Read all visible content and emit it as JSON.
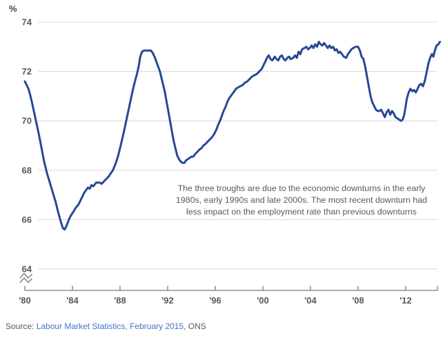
{
  "page": {
    "background": "#ffffff"
  },
  "chart_data": {
    "type": "line",
    "title": "",
    "ylabel": "%",
    "xlabel": "",
    "ylim": [
      64,
      74
    ],
    "yticks": [
      64,
      66,
      68,
      70,
      72,
      74
    ],
    "xticks": [
      {
        "year": 1980,
        "label": "'80"
      },
      {
        "year": 1984,
        "label": "'84"
      },
      {
        "year": 1988,
        "label": "'88"
      },
      {
        "year": 1992,
        "label": "'92"
      },
      {
        "year": 1996,
        "label": "'96"
      },
      {
        "year": 2000,
        "label": "'00"
      },
      {
        "year": 2004,
        "label": "'04"
      },
      {
        "year": 2008,
        "label": "'08"
      },
      {
        "year": 2012,
        "label": "'12"
      }
    ],
    "x_start_year": 1980,
    "x_end_year": 2014.67,
    "axis_break": true,
    "grid": true,
    "legend": "none",
    "colors": {
      "line": "#274796",
      "grid": "#d9d9d9",
      "axis": "#7a7a7a",
      "tick_label": "#595959"
    },
    "series": [
      {
        "name": "employment-rate",
        "points": [
          [
            1980,
            71.6
          ],
          [
            1980.15,
            71.45
          ],
          [
            1980.3,
            71.3
          ],
          [
            1980.45,
            71.05
          ],
          [
            1980.6,
            70.75
          ],
          [
            1980.8,
            70.3
          ],
          [
            1981,
            69.85
          ],
          [
            1981.2,
            69.4
          ],
          [
            1981.4,
            68.9
          ],
          [
            1981.6,
            68.4
          ],
          [
            1981.85,
            67.9
          ],
          [
            1982.1,
            67.5
          ],
          [
            1982.35,
            67.1
          ],
          [
            1982.6,
            66.7
          ],
          [
            1982.8,
            66.3
          ],
          [
            1983,
            65.95
          ],
          [
            1983.2,
            65.65
          ],
          [
            1983.35,
            65.6
          ],
          [
            1983.5,
            65.75
          ],
          [
            1983.7,
            66.0
          ],
          [
            1983.85,
            66.15
          ],
          [
            1984.05,
            66.3
          ],
          [
            1984.3,
            66.5
          ],
          [
            1984.5,
            66.6
          ],
          [
            1984.8,
            66.9
          ],
          [
            1985,
            67.1
          ],
          [
            1985.3,
            67.3
          ],
          [
            1985.45,
            67.25
          ],
          [
            1985.6,
            67.4
          ],
          [
            1985.75,
            67.35
          ],
          [
            1986,
            67.5
          ],
          [
            1986.3,
            67.5
          ],
          [
            1986.45,
            67.45
          ],
          [
            1986.65,
            67.55
          ],
          [
            1986.85,
            67.65
          ],
          [
            1987.05,
            67.75
          ],
          [
            1987.25,
            67.9
          ],
          [
            1987.4,
            68.0
          ],
          [
            1987.65,
            68.3
          ],
          [
            1987.85,
            68.6
          ],
          [
            1988.05,
            69.0
          ],
          [
            1988.25,
            69.4
          ],
          [
            1988.45,
            69.85
          ],
          [
            1988.65,
            70.3
          ],
          [
            1988.85,
            70.75
          ],
          [
            1989.05,
            71.2
          ],
          [
            1989.25,
            71.6
          ],
          [
            1989.45,
            71.95
          ],
          [
            1989.6,
            72.3
          ],
          [
            1989.7,
            72.6
          ],
          [
            1989.85,
            72.8
          ],
          [
            1990,
            72.85
          ],
          [
            1990.2,
            72.85
          ],
          [
            1990.4,
            72.85
          ],
          [
            1990.6,
            72.85
          ],
          [
            1990.75,
            72.75
          ],
          [
            1990.9,
            72.6
          ],
          [
            1991.05,
            72.4
          ],
          [
            1991.2,
            72.2
          ],
          [
            1991.35,
            72.0
          ],
          [
            1991.55,
            71.6
          ],
          [
            1991.75,
            71.2
          ],
          [
            1991.9,
            70.8
          ],
          [
            1992.05,
            70.4
          ],
          [
            1992.2,
            70.0
          ],
          [
            1992.35,
            69.6
          ],
          [
            1992.5,
            69.2
          ],
          [
            1992.65,
            68.9
          ],
          [
            1992.8,
            68.6
          ],
          [
            1992.95,
            68.45
          ],
          [
            1993.1,
            68.35
          ],
          [
            1993.25,
            68.3
          ],
          [
            1993.4,
            68.3
          ],
          [
            1993.55,
            68.4
          ],
          [
            1993.7,
            68.45
          ],
          [
            1993.85,
            68.5
          ],
          [
            1994,
            68.55
          ],
          [
            1994.15,
            68.55
          ],
          [
            1994.3,
            68.65
          ],
          [
            1994.5,
            68.75
          ],
          [
            1994.7,
            68.85
          ],
          [
            1994.85,
            68.9
          ],
          [
            1995,
            69.0
          ],
          [
            1995.15,
            69.05
          ],
          [
            1995.35,
            69.15
          ],
          [
            1995.55,
            69.25
          ],
          [
            1995.75,
            69.35
          ],
          [
            1995.95,
            69.5
          ],
          [
            1996.1,
            69.65
          ],
          [
            1996.25,
            69.85
          ],
          [
            1996.4,
            70.0
          ],
          [
            1996.55,
            70.2
          ],
          [
            1996.7,
            70.4
          ],
          [
            1996.85,
            70.55
          ],
          [
            1997,
            70.75
          ],
          [
            1997.15,
            70.9
          ],
          [
            1997.3,
            71.0
          ],
          [
            1997.45,
            71.1
          ],
          [
            1997.6,
            71.2
          ],
          [
            1997.75,
            71.3
          ],
          [
            1997.9,
            71.35
          ],
          [
            1998.1,
            71.4
          ],
          [
            1998.3,
            71.45
          ],
          [
            1998.5,
            71.55
          ],
          [
            1998.7,
            71.6
          ],
          [
            1998.9,
            71.7
          ],
          [
            1999.1,
            71.8
          ],
          [
            1999.3,
            71.85
          ],
          [
            1999.5,
            71.9
          ],
          [
            1999.7,
            72.0
          ],
          [
            1999.9,
            72.1
          ],
          [
            2000.05,
            72.25
          ],
          [
            2000.2,
            72.4
          ],
          [
            2000.35,
            72.55
          ],
          [
            2000.5,
            72.65
          ],
          [
            2000.65,
            72.5
          ],
          [
            2000.8,
            72.45
          ],
          [
            2001,
            72.6
          ],
          [
            2001.15,
            72.5
          ],
          [
            2001.3,
            72.45
          ],
          [
            2001.45,
            72.6
          ],
          [
            2001.6,
            72.65
          ],
          [
            2001.75,
            72.5
          ],
          [
            2001.9,
            72.45
          ],
          [
            2002.05,
            72.55
          ],
          [
            2002.2,
            72.6
          ],
          [
            2002.35,
            72.5
          ],
          [
            2002.55,
            72.55
          ],
          [
            2002.7,
            72.65
          ],
          [
            2002.85,
            72.55
          ],
          [
            2003,
            72.8
          ],
          [
            2003.15,
            72.7
          ],
          [
            2003.3,
            72.9
          ],
          [
            2003.5,
            72.95
          ],
          [
            2003.65,
            73.0
          ],
          [
            2003.8,
            72.9
          ],
          [
            2003.95,
            72.95
          ],
          [
            2004.1,
            73.05
          ],
          [
            2004.25,
            72.95
          ],
          [
            2004.4,
            73.1
          ],
          [
            2004.55,
            73.0
          ],
          [
            2004.7,
            73.2
          ],
          [
            2004.85,
            73.1
          ],
          [
            2005,
            73.05
          ],
          [
            2005.15,
            73.15
          ],
          [
            2005.3,
            73.05
          ],
          [
            2005.45,
            72.95
          ],
          [
            2005.6,
            73.05
          ],
          [
            2005.75,
            72.95
          ],
          [
            2005.9,
            73.0
          ],
          [
            2006.05,
            72.85
          ],
          [
            2006.2,
            72.9
          ],
          [
            2006.35,
            72.75
          ],
          [
            2006.5,
            72.8
          ],
          [
            2006.65,
            72.7
          ],
          [
            2006.8,
            72.6
          ],
          [
            2007,
            72.55
          ],
          [
            2007.15,
            72.7
          ],
          [
            2007.3,
            72.8
          ],
          [
            2007.45,
            72.9
          ],
          [
            2007.6,
            72.95
          ],
          [
            2007.8,
            73.0
          ],
          [
            2008,
            73.0
          ],
          [
            2008.15,
            72.85
          ],
          [
            2008.3,
            72.6
          ],
          [
            2008.45,
            72.5
          ],
          [
            2008.6,
            72.2
          ],
          [
            2008.75,
            71.8
          ],
          [
            2008.9,
            71.4
          ],
          [
            2009.05,
            71.0
          ],
          [
            2009.2,
            70.75
          ],
          [
            2009.35,
            70.6
          ],
          [
            2009.5,
            70.45
          ],
          [
            2009.65,
            70.4
          ],
          [
            2009.8,
            70.4
          ],
          [
            2009.95,
            70.45
          ],
          [
            2010.1,
            70.3
          ],
          [
            2010.25,
            70.15
          ],
          [
            2010.4,
            70.35
          ],
          [
            2010.55,
            70.45
          ],
          [
            2010.7,
            70.25
          ],
          [
            2010.85,
            70.4
          ],
          [
            2011,
            70.3
          ],
          [
            2011.15,
            70.15
          ],
          [
            2011.3,
            70.1
          ],
          [
            2011.45,
            70.05
          ],
          [
            2011.6,
            70.0
          ],
          [
            2011.75,
            70.05
          ],
          [
            2011.88,
            70.25
          ],
          [
            2012,
            70.6
          ],
          [
            2012.1,
            70.9
          ],
          [
            2012.25,
            71.15
          ],
          [
            2012.4,
            71.3
          ],
          [
            2012.55,
            71.2
          ],
          [
            2012.7,
            71.25
          ],
          [
            2012.85,
            71.15
          ],
          [
            2013,
            71.3
          ],
          [
            2013.15,
            71.45
          ],
          [
            2013.3,
            71.5
          ],
          [
            2013.45,
            71.4
          ],
          [
            2013.6,
            71.6
          ],
          [
            2013.75,
            71.95
          ],
          [
            2013.9,
            72.3
          ],
          [
            2014.05,
            72.55
          ],
          [
            2014.2,
            72.7
          ],
          [
            2014.33,
            72.6
          ],
          [
            2014.45,
            72.85
          ],
          [
            2014.6,
            73.05
          ],
          [
            2014.75,
            73.1
          ],
          [
            2014.88,
            73.2
          ]
        ]
      }
    ]
  },
  "annotation": {
    "text": "The three troughs are due to the economic downturns in the early\n1980s, early 1990s and late 2000s. The most recent downturn had\nless impact on the employment rate than previous downturns"
  },
  "source": {
    "prefix": "Source: ",
    "link_text": "Labour Market Statistics, February 2015",
    "suffix": ", ONS",
    "link_color": "#4472c4"
  }
}
